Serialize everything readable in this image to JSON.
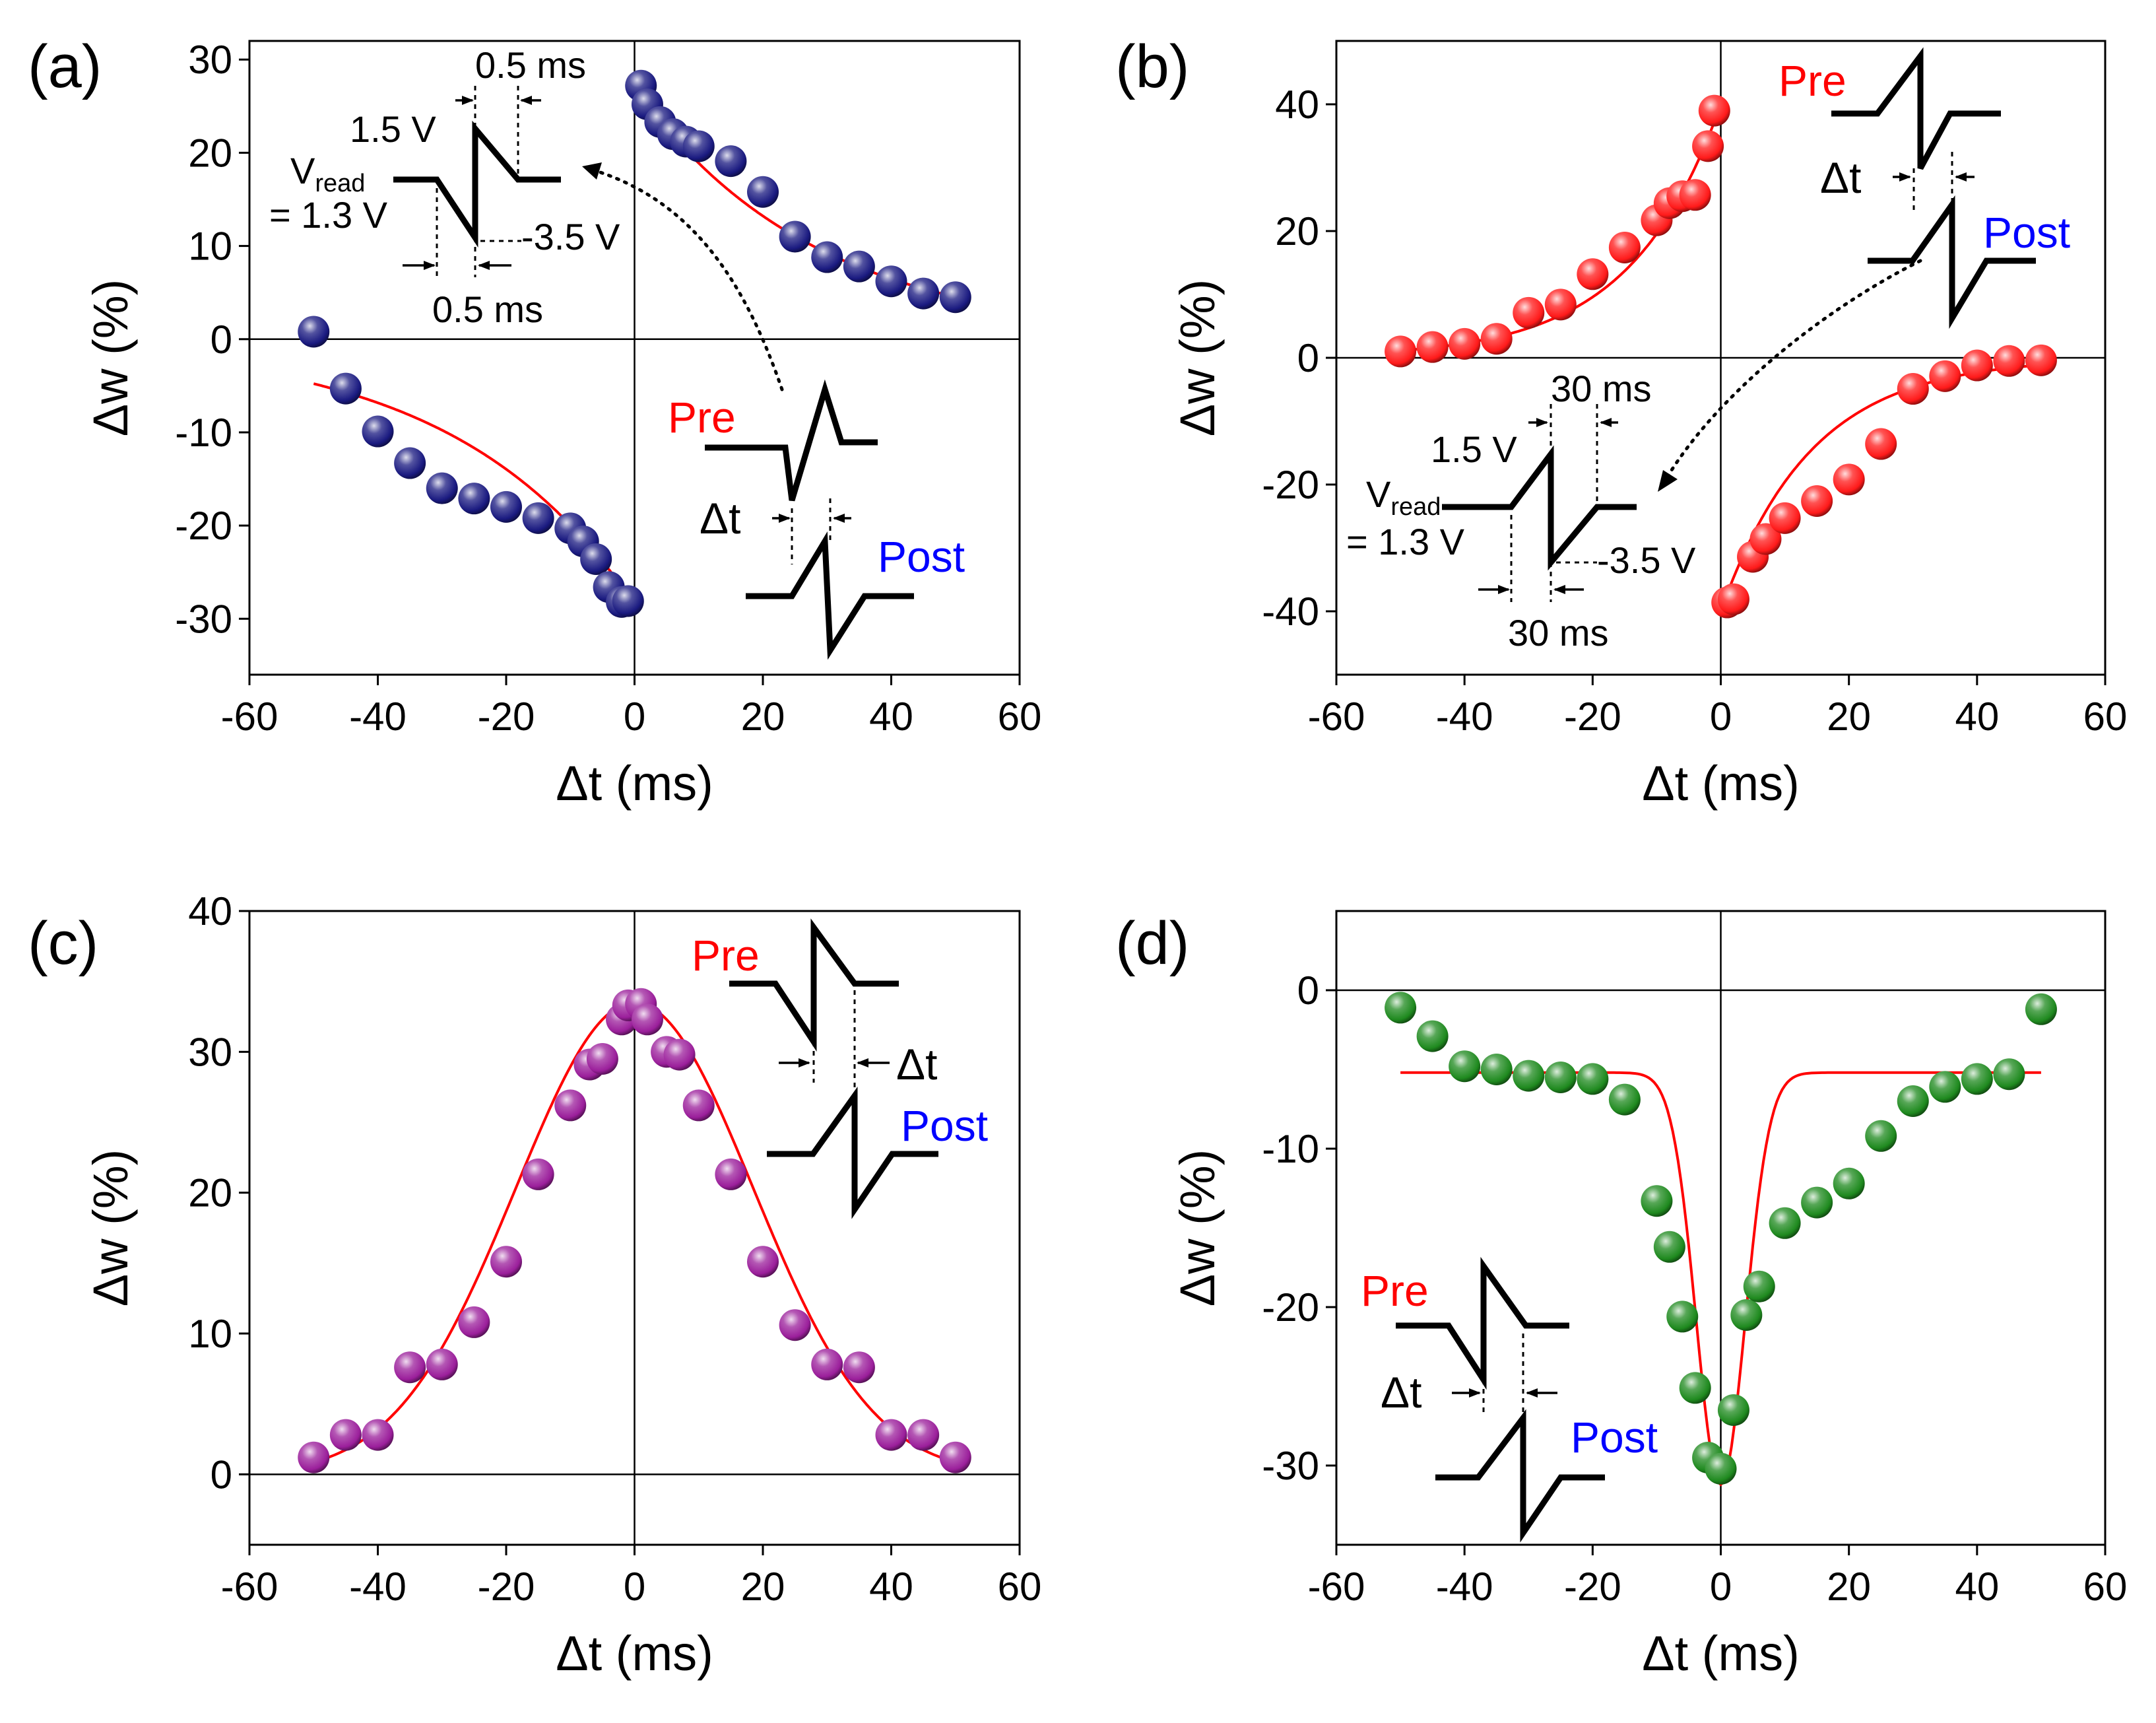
{
  "figure": {
    "panels": [
      {
        "id": "a",
        "label": "(a)",
        "xlabel": "Δt (ms)",
        "ylabel": "Δw (%)",
        "xlim": [
          -60,
          60
        ],
        "ylim": [
          -36,
          32
        ],
        "xticks": [
          -60,
          -40,
          -20,
          0,
          20,
          40,
          60
        ],
        "yticks": [
          -30,
          -20,
          -10,
          0,
          10,
          20,
          30
        ],
        "colors": {
          "marker": "#1a1a80",
          "fit": "#ff0000"
        },
        "legend": {
          "pre": "Pre",
          "post": "Post",
          "dt": "Δt"
        },
        "annotations": {
          "top_width": "0.5 ms",
          "bottom_width": "0.5 ms",
          "v_high": "1.5 V",
          "v_low": "-3.5 V",
          "v_read": "V",
          "v_read_sub": "read",
          "v_read_value": "= 1.3 V"
        }
      },
      {
        "id": "b",
        "label": "(b)",
        "xlabel": "Δt (ms)",
        "ylabel": "Δw (%)",
        "xlim": [
          -60,
          60
        ],
        "ylim": [
          -50,
          50
        ],
        "xticks": [
          -60,
          -40,
          -20,
          0,
          20,
          40,
          60
        ],
        "yticks": [
          -40,
          -20,
          0,
          20,
          40
        ],
        "colors": {
          "marker": "#ff1a1a",
          "fit": "#ff0000"
        },
        "legend": {
          "pre": "Pre",
          "post": "Post",
          "dt": "Δt"
        },
        "annotations": {
          "top_width": "30 ms",
          "bottom_width": "30 ms",
          "v_high": "1.5 V",
          "v_low": "-3.5 V",
          "v_read": "V",
          "v_read_sub": "read",
          "v_read_value": "= 1.3 V"
        }
      },
      {
        "id": "c",
        "label": "(c)",
        "xlabel": "Δt (ms)",
        "ylabel": "Δw (%)",
        "xlim": [
          -60,
          60
        ],
        "ylim": [
          -5,
          40
        ],
        "xticks": [
          -60,
          -40,
          -20,
          0,
          20,
          40,
          60
        ],
        "yticks": [
          0,
          10,
          20,
          30,
          40
        ],
        "colors": {
          "marker": "#9b1f9b",
          "fit": "#ff0000"
        },
        "legend": {
          "pre": "Pre",
          "post": "Post",
          "dt": "Δt"
        }
      },
      {
        "id": "d",
        "label": "(d)",
        "xlabel": "Δt (ms)",
        "ylabel": "Δw (%)",
        "xlim": [
          -60,
          60
        ],
        "ylim": [
          -35,
          5
        ],
        "xticks": [
          -60,
          -40,
          -20,
          0,
          20,
          40,
          60
        ],
        "yticks": [
          -30,
          -20,
          -10,
          0
        ],
        "colors": {
          "marker": "#1f8a1f",
          "fit": "#ff0000"
        },
        "legend": {
          "pre": "Pre",
          "post": "Post",
          "dt": "Δt"
        }
      }
    ]
  },
  "chart_data": [
    {
      "panel": "a",
      "type": "scatter",
      "title": "",
      "xlabel": "Δt (ms)",
      "ylabel": "Δw (%)",
      "xlim": [
        -60,
        60
      ],
      "ylim": [
        -36,
        32
      ],
      "series": [
        {
          "name": "measured",
          "x": [
            1,
            2,
            4,
            6,
            8,
            10,
            15,
            20,
            25,
            30,
            35,
            40,
            45,
            50,
            -50,
            -45,
            -40,
            -35,
            -30,
            -25,
            -20,
            -15,
            -10,
            -8,
            -6,
            -4,
            -2,
            -1
          ],
          "y": [
            27.2,
            25.2,
            23.3,
            22,
            21.2,
            20.7,
            19.1,
            15.8,
            11,
            8.8,
            7.8,
            6.2,
            4.9,
            4.5,
            0.8,
            -5.3,
            -9.9,
            -13.3,
            -16,
            -17.1,
            -18,
            -19.2,
            -20.3,
            -21.7,
            -23.6,
            -26.6,
            -28.2,
            -28.1
          ]
        }
      ],
      "fits": [
        {
          "name": "fit-positive",
          "model": "exp",
          "A": 27,
          "tau": 28,
          "xrange": [
            1,
            50
          ]
        },
        {
          "name": "fit-negative",
          "model": "exp",
          "A": -28.5,
          "tau": 28,
          "xrange": [
            -50,
            -1
          ]
        }
      ]
    },
    {
      "panel": "b",
      "type": "scatter",
      "title": "",
      "xlabel": "Δt (ms)",
      "ylabel": "Δw (%)",
      "xlim": [
        -60,
        60
      ],
      "ylim": [
        -50,
        50
      ],
      "series": [
        {
          "name": "measured",
          "x": [
            -50,
            -45,
            -40,
            -35,
            -30,
            -25,
            -20,
            -15,
            -10,
            -8,
            -6,
            -4,
            -2,
            -1,
            1,
            2,
            5,
            7,
            10,
            15,
            20,
            25,
            30,
            35,
            40,
            45,
            50
          ],
          "y": [
            1,
            1.7,
            2.2,
            3,
            7.1,
            8.4,
            13.2,
            17.4,
            21.7,
            24.4,
            25.5,
            25.7,
            33.4,
            39,
            -38.6,
            -38.1,
            -31.4,
            -28.6,
            -25.3,
            -22.6,
            -19.2,
            -13.6,
            -4.9,
            -2.9,
            -1.2,
            -0.5,
            -0.4
          ]
        }
      ],
      "fits": [
        {
          "name": "fit-negative-dt",
          "model": "exp",
          "A": 40,
          "tau": 14,
          "xrange": [
            -50,
            -1
          ]
        },
        {
          "name": "fit-positive-dt",
          "model": "exp",
          "A": -40,
          "tau": 14,
          "xrange": [
            1,
            50
          ]
        }
      ]
    },
    {
      "panel": "c",
      "type": "scatter",
      "title": "",
      "xlabel": "Δt (ms)",
      "ylabel": "Δw (%)",
      "xlim": [
        -60,
        60
      ],
      "ylim": [
        -5,
        40
      ],
      "series": [
        {
          "name": "measured",
          "x": [
            -50,
            -45,
            -40,
            -35,
            -30,
            -25,
            -20,
            -15,
            -10,
            -7,
            -5,
            -2,
            -1,
            1,
            2,
            5,
            7,
            10,
            15,
            20,
            25,
            30,
            35,
            40,
            45,
            50
          ],
          "y": [
            1.2,
            2.8,
            2.8,
            7.6,
            7.8,
            10.8,
            15.1,
            21.3,
            26.2,
            29.1,
            29.5,
            32.3,
            33.3,
            33.4,
            32.3,
            30,
            29.8,
            26.2,
            21.3,
            15.1,
            10.6,
            7.8,
            7.6,
            2.8,
            2.8,
            1.2
          ]
        }
      ],
      "fits": [
        {
          "name": "gaussian-fit",
          "model": "gauss",
          "A": 33.5,
          "sigma": 18.5,
          "xrange": [
            -50,
            50
          ]
        }
      ]
    },
    {
      "panel": "d",
      "type": "scatter",
      "title": "",
      "xlabel": "Δt (ms)",
      "ylabel": "Δw (%)",
      "xlim": [
        -60,
        60
      ],
      "ylim": [
        -35,
        5
      ],
      "series": [
        {
          "name": "measured",
          "x": [
            -50,
            -45,
            -40,
            -35,
            -30,
            -25,
            -20,
            -15,
            -10,
            -8,
            -6,
            -4,
            -2,
            0,
            2,
            4,
            6,
            10,
            15,
            20,
            25,
            30,
            35,
            40,
            45,
            50
          ],
          "y": [
            -1.1,
            -2.9,
            -4.8,
            -5,
            -5.4,
            -5.5,
            -5.6,
            -6.9,
            -13.3,
            -16.2,
            -20.6,
            -25.1,
            -29.5,
            -30.2,
            -26.5,
            -20.5,
            -18.7,
            -14.7,
            -13.4,
            -12.2,
            -9.2,
            -7,
            -6.1,
            -5.6,
            -5.3,
            -1.2
          ]
        }
      ],
      "fits": [
        {
          "name": "gaussian-fit",
          "model": "gauss",
          "baseline": -5.2,
          "A": -26,
          "sigma": 3.8,
          "xrange": [
            -50,
            50
          ]
        }
      ]
    }
  ]
}
